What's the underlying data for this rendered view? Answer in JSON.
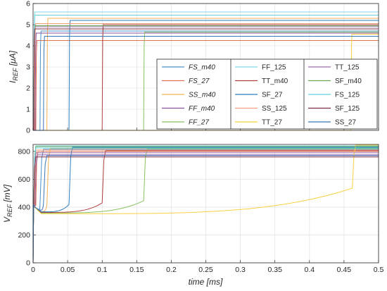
{
  "chart_data": [
    {
      "type": "line",
      "title": "",
      "xlabel": "",
      "ylabel": "I",
      "ylabel_sub": "REF",
      "ylabel_unit": " [μA]",
      "xlim": [
        0,
        0.5
      ],
      "ylim": [
        0,
        6
      ],
      "xticks": [
        0,
        0.05,
        0.1,
        0.15,
        0.2,
        0.25,
        0.3,
        0.35,
        0.4,
        0.45,
        0.5
      ],
      "xtick_labels": [
        "",
        "",
        "",
        "",
        "",
        "",
        "",
        "",
        "",
        "",
        ""
      ],
      "yticks": [
        0,
        1,
        2,
        3,
        4,
        5,
        6
      ],
      "ytick_labels": [
        "0",
        "1",
        "2",
        "3",
        "4",
        "5",
        "6"
      ],
      "grid": true,
      "legend": {
        "placement": "lower-right",
        "columns": 3
      },
      "series": [
        {
          "name": "FS_m40",
          "italic": true,
          "color": "#4a90c8",
          "t_start": 0.01,
          "y_final": 4.7,
          "order": 0
        },
        {
          "name": "FS_27",
          "italic": true,
          "color": "#e07050",
          "t_start": 0.004,
          "y_final": 4.25,
          "order": 1
        },
        {
          "name": "SS_m40",
          "italic": true,
          "color": "#f0b050",
          "t_start": 0.02,
          "y_final": 5.3,
          "order": 2
        },
        {
          "name": "FF_m40",
          "italic": true,
          "color": "#8a4f9e",
          "t_start": 0.003,
          "y_final": 4.6,
          "order": 3
        },
        {
          "name": "FF_27",
          "italic": true,
          "color": "#88c060",
          "t_start": 0.16,
          "y_final": 4.65,
          "order": 4
        },
        {
          "name": "FF_125",
          "italic": false,
          "color": "#7fd8e8",
          "t_start": 0.001,
          "y_final": 5.6,
          "order": 5
        },
        {
          "name": "TT_m40",
          "italic": false,
          "color": "#b04040",
          "t_start": 0.1,
          "y_final": 5.0,
          "order": 6
        },
        {
          "name": "SF_27",
          "italic": false,
          "color": "#2f7fbf",
          "t_start": 0.052,
          "y_final": 5.2,
          "order": 7
        },
        {
          "name": "SS_125",
          "italic": false,
          "color": "#f0a080",
          "t_start": 0.002,
          "y_final": 5.05,
          "order": 8
        },
        {
          "name": "TT_27",
          "italic": false,
          "color": "#f8d040",
          "t_start": 0.46,
          "y_final": 4.55,
          "order": 9
        },
        {
          "name": "TT_125",
          "italic": false,
          "color": "#9a6aa8",
          "t_start": 0.001,
          "y_final": 4.9,
          "order": 10
        },
        {
          "name": "SF_m40",
          "italic": false,
          "color": "#6aaa50",
          "t_start": 0.001,
          "y_final": 4.95,
          "order": 11
        },
        {
          "name": "FS_125",
          "italic": false,
          "color": "#5fd0e0",
          "t_start": 0.001,
          "y_final": 5.45,
          "order": 12
        },
        {
          "name": "SF_125",
          "italic": false,
          "color": "#7a2e46",
          "t_start": 0.001,
          "y_final": 4.8,
          "order": 13
        },
        {
          "name": "SS_27",
          "italic": false,
          "color": "#3a78b8",
          "t_start": 0.015,
          "y_final": 4.45,
          "order": 14
        }
      ]
    },
    {
      "type": "line",
      "title": "",
      "xlabel": "time [ms]",
      "ylabel": "V",
      "ylabel_sub": "REF",
      "ylabel_unit": " [mV]",
      "xlim": [
        0,
        0.5
      ],
      "ylim": [
        0,
        850
      ],
      "xticks": [
        0,
        0.05,
        0.1,
        0.15,
        0.2,
        0.25,
        0.3,
        0.35,
        0.4,
        0.45,
        0.5
      ],
      "xtick_labels": [
        "0",
        "0.05",
        "0.1",
        "0.15",
        "0.2",
        "0.25",
        "0.3",
        "0.35",
        "0.4",
        "0.45",
        "0.5"
      ],
      "yticks": [
        0,
        200,
        400,
        600,
        800
      ],
      "ytick_labels": [
        "0",
        "200",
        "400",
        "600",
        "800"
      ],
      "grid": true,
      "series": [
        {
          "name": "FS_m40",
          "color": "#4a90c8",
          "t_jump": 0.01,
          "v_min": 372,
          "v_final": 815
        },
        {
          "name": "FS_27",
          "color": "#e07050",
          "t_jump": 0.004,
          "v_min": 392,
          "v_final": 800
        },
        {
          "name": "SS_m40",
          "color": "#f0b050",
          "t_jump": 0.02,
          "v_min": 368,
          "v_final": 822
        },
        {
          "name": "FF_m40",
          "color": "#8a4f9e",
          "t_jump": 0.003,
          "v_min": 395,
          "v_final": 775
        },
        {
          "name": "FF_27",
          "color": "#88c060",
          "t_jump": 0.16,
          "v_min": 358,
          "v_final": 820
        },
        {
          "name": "FF_125",
          "color": "#7fd8e8",
          "t_jump": 0.001,
          "v_min": 400,
          "v_final": 840
        },
        {
          "name": "TT_m40",
          "color": "#b04040",
          "t_jump": 0.1,
          "v_min": 362,
          "v_final": 805
        },
        {
          "name": "SF_27",
          "color": "#2f7fbf",
          "t_jump": 0.052,
          "v_min": 366,
          "v_final": 830
        },
        {
          "name": "SS_125",
          "color": "#f0a080",
          "t_jump": 0.002,
          "v_min": 400,
          "v_final": 810
        },
        {
          "name": "TT_27",
          "color": "#f8d040",
          "t_jump": 0.462,
          "v_min": 352,
          "v_final": 845
        },
        {
          "name": "TT_125",
          "color": "#9a6aa8",
          "t_jump": 0.001,
          "v_min": 400,
          "v_final": 790
        },
        {
          "name": "SF_m40",
          "color": "#6aaa50",
          "t_jump": 0.001,
          "v_min": 400,
          "v_final": 835
        },
        {
          "name": "FS_125",
          "color": "#5fd0e0",
          "t_jump": 0.001,
          "v_min": 400,
          "v_final": 825
        },
        {
          "name": "SF_125",
          "color": "#7a2e46",
          "t_jump": 0.001,
          "v_min": 400,
          "v_final": 760
        },
        {
          "name": "SS_27",
          "color": "#3a78b8",
          "t_jump": 0.015,
          "v_min": 378,
          "v_final": 770
        }
      ]
    }
  ]
}
